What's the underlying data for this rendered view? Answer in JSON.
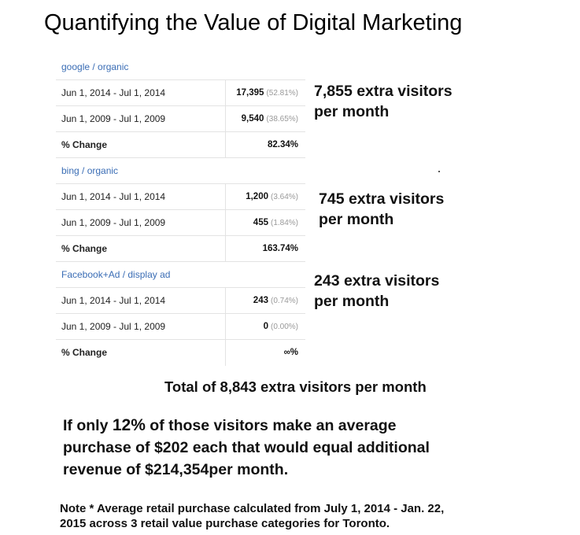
{
  "title": "Quantifying the Value of Digital Marketing",
  "table": {
    "groups": [
      {
        "source": "google / organic",
        "rows": [
          {
            "period": "Jun 1, 2014 - Jul 1, 2014",
            "value": "17,395",
            "pct": "(52.81%)"
          },
          {
            "period": "Jun 1, 2009 - Jul 1, 2009",
            "value": "9,540",
            "pct": "(38.65%)"
          }
        ],
        "change_label": "% Change",
        "change_value": "82.34%"
      },
      {
        "source": "bing / organic",
        "rows": [
          {
            "period": "Jun 1, 2014 - Jul 1, 2014",
            "value": "1,200",
            "pct": "(3.64%)"
          },
          {
            "period": "Jun 1, 2009 - Jul 1, 2009",
            "value": "455",
            "pct": "(1.84%)"
          }
        ],
        "change_label": "% Change",
        "change_value": "163.74%"
      },
      {
        "source": "Facebook+Ad / display ad",
        "rows": [
          {
            "period": "Jun 1, 2014 - Jul 1, 2014",
            "value": "243",
            "pct": "(0.74%)"
          },
          {
            "period": "Jun 1, 2009 - Jul 1, 2009",
            "value": "0",
            "pct": "(0.00%)"
          }
        ],
        "change_label": "% Change",
        "change_value": "∞%"
      }
    ]
  },
  "callouts": [
    {
      "line1": "7,855 extra visitors",
      "line2": "per month"
    },
    {
      "line1": "745 extra visitors",
      "line2": "per month"
    },
    {
      "line1": "243 extra visitors",
      "line2": "per month"
    }
  ],
  "total": "Total of 8,843 extra visitors per month",
  "paragraph": {
    "pre": "If only ",
    "percent": "12%",
    "post": " of those visitors make an average",
    "line2": "purchase of $202 each that would equal  additional",
    "line3": "revenue of $214,354per month."
  },
  "footnote": {
    "line1": "Note * Average retail purchase calculated from July 1, 2014 - Jan. 22,",
    "line2": "2015 across 3 retail value purchase categories for Toronto."
  }
}
